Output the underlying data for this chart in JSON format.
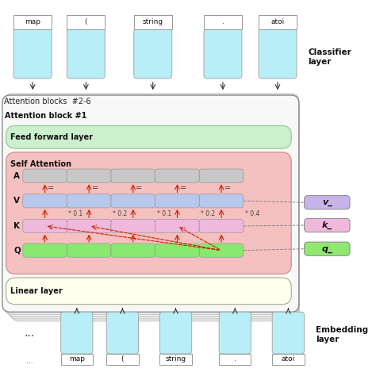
{
  "top_tokens": [
    "map",
    "(",
    "string",
    ".",
    "atoi"
  ],
  "bottom_tokens_label": [
    "...",
    "map",
    "(",
    "string",
    ".",
    "atoi"
  ],
  "attention_weights": [
    "0.1",
    "0.2",
    "0.1",
    "0.2",
    "0.4"
  ],
  "legend_labels": [
    "v_",
    "k_",
    "q_"
  ],
  "legend_colors": [
    "#c8b4e8",
    "#f0b8dc",
    "#90e870"
  ],
  "bg_color": "#ffffff",
  "outer_block_color": "#f0f0f0",
  "attn_block1_color": "#f8f8f8",
  "self_attn_color": "#f5c0c0",
  "ff_color": "#ccf0cc",
  "linear_color": "#fffff0",
  "embed_token_color": "#b8eef8",
  "top_token_color": "#b8eef8",
  "A_row_color": "#c8c8c8",
  "V_row_color": "#b8c8ec",
  "K_row_color": "#f0b8dc",
  "Q_row_color": "#88e870",
  "arrow_color": "#cc2200",
  "line_color": "#333333",
  "label_color": "#111111"
}
